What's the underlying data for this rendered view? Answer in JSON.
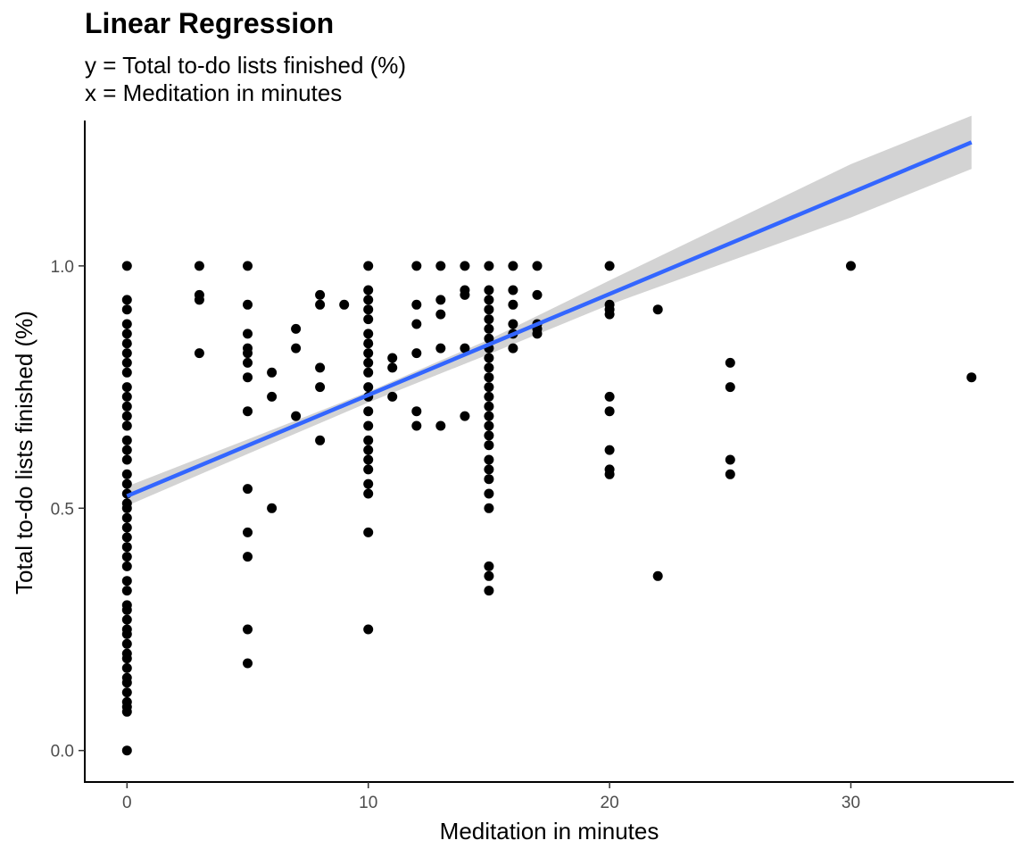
{
  "chart_data": {
    "type": "scatter",
    "title": "Linear Regression",
    "subtitle": [
      "y = Total to-do lists finished (%)",
      "x = Meditation in minutes"
    ],
    "xlabel": "Meditation in minutes",
    "ylabel": "Total to-do lists finished (%)",
    "xlim": [
      -1.75,
      36.75
    ],
    "ylim": [
      -0.065,
      1.3
    ],
    "x_ticks": [
      0,
      10,
      20,
      30
    ],
    "y_ticks": [
      0.0,
      0.5,
      1.0
    ],
    "x_tick_labels": [
      "0",
      "10",
      "20",
      "30"
    ],
    "y_tick_labels": [
      "0.0",
      "0.5",
      "1.0"
    ],
    "grid": false,
    "legend": "none",
    "colors": {
      "points": "#000000",
      "fit_line": "#3366ff",
      "confidence_band": "#d3d3d3",
      "axis": "#000000"
    },
    "fit": {
      "method": "lm",
      "x_range": [
        0,
        35
      ],
      "line": {
        "x": [
          0,
          35
        ],
        "y": [
          0.525,
          1.255
        ]
      },
      "ci_upper": {
        "x": [
          0,
          5,
          10,
          15,
          20,
          25,
          30,
          35
        ],
        "y": [
          0.545,
          0.642,
          0.74,
          0.848,
          0.97,
          1.09,
          1.21,
          1.31
        ]
      },
      "ci_lower": {
        "x": [
          0,
          5,
          10,
          15,
          20,
          25,
          30,
          35
        ],
        "y": [
          0.505,
          0.612,
          0.718,
          0.818,
          0.92,
          1.01,
          1.1,
          1.2
        ]
      }
    },
    "points": [
      [
        0,
        0.0
      ],
      [
        0,
        0.08
      ],
      [
        0,
        0.09
      ],
      [
        0,
        0.1
      ],
      [
        0,
        0.12
      ],
      [
        0,
        0.14
      ],
      [
        0,
        0.15
      ],
      [
        0,
        0.17
      ],
      [
        0,
        0.19
      ],
      [
        0,
        0.2
      ],
      [
        0,
        0.22
      ],
      [
        0,
        0.24
      ],
      [
        0,
        0.25
      ],
      [
        0,
        0.27
      ],
      [
        0,
        0.29
      ],
      [
        0,
        0.3
      ],
      [
        0,
        0.33
      ],
      [
        0,
        0.35
      ],
      [
        0,
        0.38
      ],
      [
        0,
        0.4
      ],
      [
        0,
        0.42
      ],
      [
        0,
        0.44
      ],
      [
        0,
        0.46
      ],
      [
        0,
        0.48
      ],
      [
        0,
        0.5
      ],
      [
        0,
        0.51
      ],
      [
        0,
        0.53
      ],
      [
        0,
        0.55
      ],
      [
        0,
        0.57
      ],
      [
        0,
        0.6
      ],
      [
        0,
        0.62
      ],
      [
        0,
        0.64
      ],
      [
        0,
        0.67
      ],
      [
        0,
        0.69
      ],
      [
        0,
        0.71
      ],
      [
        0,
        0.73
      ],
      [
        0,
        0.75
      ],
      [
        0,
        0.78
      ],
      [
        0,
        0.8
      ],
      [
        0,
        0.82
      ],
      [
        0,
        0.84
      ],
      [
        0,
        0.86
      ],
      [
        0,
        0.88
      ],
      [
        0,
        0.91
      ],
      [
        0,
        0.93
      ],
      [
        0,
        1.0
      ],
      [
        3,
        0.82
      ],
      [
        3,
        0.93
      ],
      [
        3,
        0.94
      ],
      [
        3,
        1.0
      ],
      [
        5,
        0.18
      ],
      [
        5,
        0.25
      ],
      [
        5,
        0.4
      ],
      [
        5,
        0.45
      ],
      [
        5,
        0.54
      ],
      [
        5,
        0.7
      ],
      [
        5,
        0.77
      ],
      [
        5,
        0.8
      ],
      [
        5,
        0.82
      ],
      [
        5,
        0.83
      ],
      [
        5,
        0.86
      ],
      [
        5,
        0.92
      ],
      [
        5,
        1.0
      ],
      [
        6,
        0.5
      ],
      [
        6,
        0.73
      ],
      [
        6,
        0.78
      ],
      [
        7,
        0.69
      ],
      [
        7,
        0.83
      ],
      [
        7,
        0.87
      ],
      [
        8,
        0.64
      ],
      [
        8,
        0.75
      ],
      [
        8,
        0.79
      ],
      [
        8,
        0.92
      ],
      [
        8,
        0.94
      ],
      [
        9,
        0.92
      ],
      [
        10,
        0.25
      ],
      [
        10,
        0.45
      ],
      [
        10,
        0.53
      ],
      [
        10,
        0.55
      ],
      [
        10,
        0.58
      ],
      [
        10,
        0.6
      ],
      [
        10,
        0.62
      ],
      [
        10,
        0.64
      ],
      [
        10,
        0.67
      ],
      [
        10,
        0.7
      ],
      [
        10,
        0.73
      ],
      [
        10,
        0.75
      ],
      [
        10,
        0.78
      ],
      [
        10,
        0.8
      ],
      [
        10,
        0.82
      ],
      [
        10,
        0.84
      ],
      [
        10,
        0.86
      ],
      [
        10,
        0.89
      ],
      [
        10,
        0.91
      ],
      [
        10,
        0.93
      ],
      [
        10,
        0.95
      ],
      [
        10,
        1.0
      ],
      [
        11,
        0.73
      ],
      [
        11,
        0.79
      ],
      [
        11,
        0.81
      ],
      [
        12,
        0.67
      ],
      [
        12,
        0.7
      ],
      [
        12,
        0.82
      ],
      [
        12,
        0.88
      ],
      [
        12,
        0.92
      ],
      [
        12,
        1.0
      ],
      [
        13,
        0.67
      ],
      [
        13,
        0.83
      ],
      [
        13,
        0.9
      ],
      [
        13,
        0.93
      ],
      [
        13,
        1.0
      ],
      [
        14,
        0.69
      ],
      [
        14,
        0.83
      ],
      [
        14,
        0.94
      ],
      [
        14,
        0.95
      ],
      [
        14,
        1.0
      ],
      [
        15,
        0.33
      ],
      [
        15,
        0.36
      ],
      [
        15,
        0.38
      ],
      [
        15,
        0.5
      ],
      [
        15,
        0.53
      ],
      [
        15,
        0.56
      ],
      [
        15,
        0.58
      ],
      [
        15,
        0.6
      ],
      [
        15,
        0.63
      ],
      [
        15,
        0.65
      ],
      [
        15,
        0.67
      ],
      [
        15,
        0.69
      ],
      [
        15,
        0.71
      ],
      [
        15,
        0.73
      ],
      [
        15,
        0.75
      ],
      [
        15,
        0.77
      ],
      [
        15,
        0.79
      ],
      [
        15,
        0.81
      ],
      [
        15,
        0.83
      ],
      [
        15,
        0.85
      ],
      [
        15,
        0.87
      ],
      [
        15,
        0.89
      ],
      [
        15,
        0.91
      ],
      [
        15,
        0.93
      ],
      [
        15,
        0.95
      ],
      [
        15,
        1.0
      ],
      [
        16,
        0.83
      ],
      [
        16,
        0.86
      ],
      [
        16,
        0.88
      ],
      [
        16,
        0.92
      ],
      [
        16,
        0.95
      ],
      [
        16,
        1.0
      ],
      [
        17,
        0.86
      ],
      [
        17,
        0.87
      ],
      [
        17,
        0.88
      ],
      [
        17,
        0.94
      ],
      [
        17,
        1.0
      ],
      [
        20,
        0.57
      ],
      [
        20,
        0.58
      ],
      [
        20,
        0.62
      ],
      [
        20,
        0.7
      ],
      [
        20,
        0.73
      ],
      [
        20,
        0.9
      ],
      [
        20,
        0.91
      ],
      [
        20,
        0.92
      ],
      [
        20,
        1.0
      ],
      [
        22,
        0.36
      ],
      [
        22,
        0.91
      ],
      [
        25,
        0.57
      ],
      [
        25,
        0.6
      ],
      [
        25,
        0.75
      ],
      [
        25,
        0.8
      ],
      [
        30,
        1.0
      ],
      [
        35,
        0.77
      ]
    ]
  }
}
